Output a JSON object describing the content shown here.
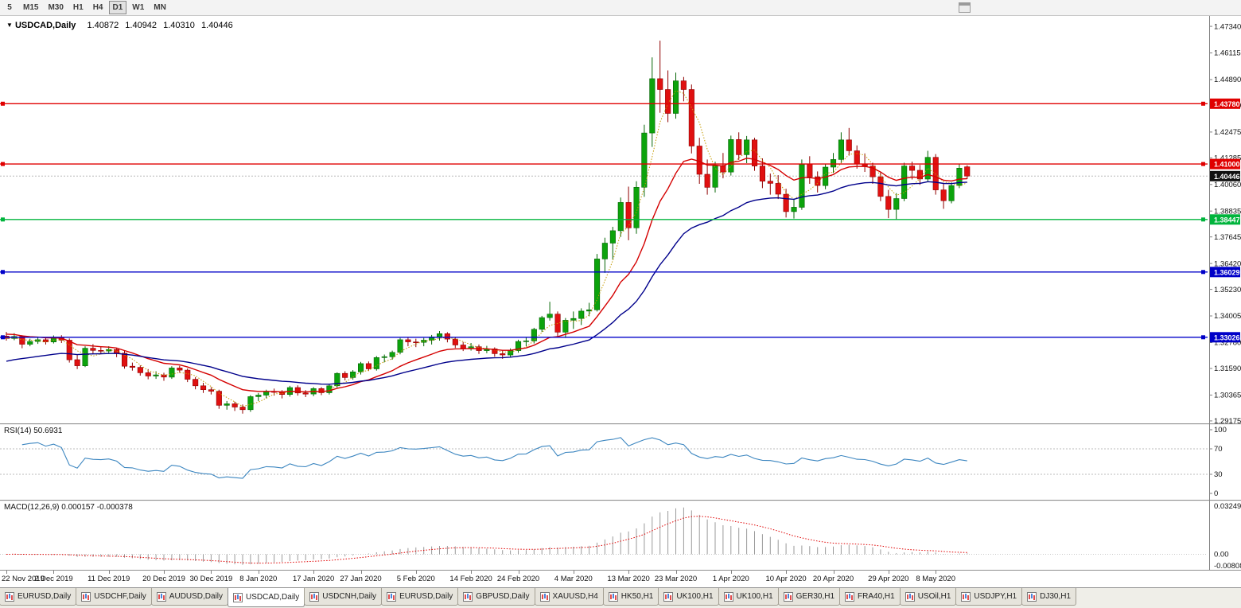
{
  "toolbar": {
    "timeframes": [
      "5",
      "M15",
      "M30",
      "H1",
      "H4",
      "D1",
      "W1",
      "MN"
    ],
    "selected": "D1"
  },
  "chart_header": {
    "dropdown_icon": "▼",
    "symbol": "USDCAD,Daily",
    "open": "1.40872",
    "high": "1.40942",
    "low": "1.40310",
    "close": "1.40446"
  },
  "price_axis": {
    "ticks": [
      "1.47340",
      "1.46115",
      "1.44890",
      "1.43700",
      "1.42475",
      "1.41285",
      "1.40060",
      "1.38835",
      "1.37645",
      "1.36420",
      "1.35230",
      "1.34005",
      "1.32780",
      "1.31590",
      "1.30365",
      "1.29175"
    ]
  },
  "levels": [
    {
      "value": 1.4378,
      "label": "1.43780",
      "color": "#E00000"
    },
    {
      "value": 1.41,
      "label": "1.41000",
      "color": "#E00000"
    },
    {
      "value": 1.38447,
      "label": "1.38447",
      "color": "#00B43C"
    },
    {
      "value": 1.36029,
      "label": "1.36029",
      "color": "#0000C8"
    },
    {
      "value": 1.33026,
      "label": "1.33026",
      "color": "#0000C8"
    }
  ],
  "current_price": {
    "value": 1.40446,
    "label": "1.40446"
  },
  "rsi_panel": {
    "label": "RSI(14) 50.6931",
    "period": 14,
    "upper": 70,
    "lower": 30,
    "color": "#3C86C0",
    "axis_ticks": [
      {
        "v": 100,
        "t": "100"
      },
      {
        "v": 70,
        "t": "70"
      },
      {
        "v": 30,
        "t": "30"
      },
      {
        "v": 0,
        "t": "0"
      }
    ]
  },
  "macd_panel": {
    "label": "MACD(12,26,9) 0.000157 -0.000378",
    "fast": 12,
    "slow": 26,
    "signal_period": 9,
    "axis_top": "0.032493",
    "axis_zero": "0.00",
    "axis_bottom": "-0.008086",
    "scale_max": 0.032493,
    "scale_min": -0.008086,
    "hist_color": "#9A9A9A",
    "signal_color": "#E00000"
  },
  "time_axis": {
    "labels": [
      {
        "bar": 0,
        "text": "22 Nov 2019"
      },
      {
        "bar": 6,
        "text": "2 Dec 2019"
      },
      {
        "bar": 13,
        "text": "11 Dec 2019"
      },
      {
        "bar": 20,
        "text": "20 Dec 2019"
      },
      {
        "bar": 26,
        "text": "30 Dec 2019"
      },
      {
        "bar": 32,
        "text": "8 Jan 2020"
      },
      {
        "bar": 39,
        "text": "17 Jan 2020"
      },
      {
        "bar": 45,
        "text": "27 Jan 2020"
      },
      {
        "bar": 52,
        "text": "5 Feb 2020"
      },
      {
        "bar": 59,
        "text": "14 Feb 2020"
      },
      {
        "bar": 65,
        "text": "24 Feb 2020"
      },
      {
        "bar": 72,
        "text": "4 Mar 2020"
      },
      {
        "bar": 79,
        "text": "13 Mar 2020"
      },
      {
        "bar": 85,
        "text": "23 Mar 2020"
      },
      {
        "bar": 92,
        "text": "1 Apr 2020"
      },
      {
        "bar": 99,
        "text": "10 Apr 2020"
      },
      {
        "bar": 105,
        "text": "20 Apr 2020"
      },
      {
        "bar": 112,
        "text": "29 Apr 2020"
      },
      {
        "bar": 118,
        "text": "8 May 2020"
      }
    ]
  },
  "tabs": [
    "EURUSD,Daily",
    "USDCHF,Daily",
    "AUDUSD,Daily",
    "USDCAD,Daily",
    "USDCNH,Daily",
    "EURUSD,Daily",
    "GBPUSD,Daily",
    "XAUUSD,H4",
    "HK50,H1",
    "UK100,H1",
    "UK100,H1",
    "GER30,H1",
    "FRA40,H1",
    "USOil,H1",
    "USDJPY,H1",
    "DJ30,H1"
  ],
  "selected_tab_index": 3,
  "colors": {
    "up": "#0CA30C",
    "up_edge": "#056605",
    "down": "#E01010",
    "down_edge": "#8F0000",
    "axis_line": "#808080",
    "current_line": "#B8B8B8",
    "rsi_guides": "#BBBBBB",
    "divider": "#8F8F8F"
  },
  "chart_data": {
    "type": "candlestick",
    "title": "USDCAD,Daily",
    "price_range_visible": [
      1.2906,
      1.4782
    ],
    "moving_averages": [
      {
        "name": "fast",
        "method": "sma",
        "period": 4,
        "color": "#C49A00",
        "style": "dotted",
        "seed": null
      },
      {
        "name": "medium",
        "method": "ema",
        "period": 13,
        "color": "#D40000",
        "style": "solid",
        "seed": 1.332
      },
      {
        "name": "slow",
        "method": "ema",
        "period": 30,
        "color": "#00008B",
        "style": "solid",
        "seed": 1.3185
      }
    ],
    "candles": [
      [
        1.3308,
        1.3327,
        1.3287,
        1.3297
      ],
      [
        1.3297,
        1.3321,
        1.3289,
        1.3306
      ],
      [
        1.3306,
        1.3312,
        1.3252,
        1.327
      ],
      [
        1.327,
        1.3296,
        1.3261,
        1.3283
      ],
      [
        1.3283,
        1.3304,
        1.3272,
        1.3291
      ],
      [
        1.3291,
        1.33,
        1.3269,
        1.3281
      ],
      [
        1.3281,
        1.3311,
        1.3274,
        1.33
      ],
      [
        1.33,
        1.3312,
        1.3276,
        1.3289
      ],
      [
        1.3289,
        1.3297,
        1.3186,
        1.3199
      ],
      [
        1.3199,
        1.3222,
        1.3156,
        1.3171
      ],
      [
        1.3171,
        1.3261,
        1.3165,
        1.3252
      ],
      [
        1.3252,
        1.3271,
        1.3227,
        1.3242
      ],
      [
        1.3242,
        1.3258,
        1.3224,
        1.3239
      ],
      [
        1.3239,
        1.3261,
        1.3229,
        1.3246
      ],
      [
        1.3246,
        1.3253,
        1.3211,
        1.3229
      ],
      [
        1.3229,
        1.324,
        1.3158,
        1.3169
      ],
      [
        1.3169,
        1.3186,
        1.3149,
        1.3164
      ],
      [
        1.3164,
        1.3173,
        1.3126,
        1.3139
      ],
      [
        1.3139,
        1.3156,
        1.3109,
        1.3124
      ],
      [
        1.3124,
        1.3146,
        1.3111,
        1.3129
      ],
      [
        1.3129,
        1.3139,
        1.3102,
        1.3119
      ],
      [
        1.3119,
        1.3169,
        1.3111,
        1.3161
      ],
      [
        1.3161,
        1.3171,
        1.3139,
        1.3151
      ],
      [
        1.3151,
        1.3159,
        1.3096,
        1.3109
      ],
      [
        1.3109,
        1.3119,
        1.3063,
        1.3079
      ],
      [
        1.3079,
        1.3093,
        1.3046,
        1.3061
      ],
      [
        1.3061,
        1.3073,
        1.3039,
        1.3054
      ],
      [
        1.3054,
        1.3061,
        1.2973,
        1.2989
      ],
      [
        1.2989,
        1.3009,
        1.2969,
        1.2996
      ],
      [
        1.2996,
        1.3006,
        1.2963,
        1.2981
      ],
      [
        1.2981,
        1.2993,
        1.2951,
        1.2969
      ],
      [
        1.2969,
        1.3036,
        1.2959,
        1.3029
      ],
      [
        1.3029,
        1.3046,
        1.3009,
        1.3036
      ],
      [
        1.3036,
        1.3061,
        1.3021,
        1.3053
      ],
      [
        1.3053,
        1.3066,
        1.3034,
        1.3049
      ],
      [
        1.3049,
        1.3059,
        1.3021,
        1.3039
      ],
      [
        1.3039,
        1.3079,
        1.3029,
        1.3071
      ],
      [
        1.3071,
        1.3081,
        1.3034,
        1.3046
      ],
      [
        1.3046,
        1.3059,
        1.3027,
        1.3041
      ],
      [
        1.3041,
        1.3073,
        1.3031,
        1.3066
      ],
      [
        1.3066,
        1.3073,
        1.3036,
        1.3047
      ],
      [
        1.3047,
        1.3086,
        1.3039,
        1.3079
      ],
      [
        1.3079,
        1.3141,
        1.3071,
        1.3136
      ],
      [
        1.3136,
        1.3146,
        1.3104,
        1.3117
      ],
      [
        1.3117,
        1.3151,
        1.3107,
        1.3143
      ],
      [
        1.3143,
        1.3189,
        1.3131,
        1.3181
      ],
      [
        1.3181,
        1.3191,
        1.3147,
        1.3157
      ],
      [
        1.3157,
        1.3216,
        1.3149,
        1.3209
      ],
      [
        1.3209,
        1.3223,
        1.3187,
        1.3213
      ],
      [
        1.3213,
        1.3241,
        1.3199,
        1.3233
      ],
      [
        1.3233,
        1.3299,
        1.3224,
        1.3291
      ],
      [
        1.3291,
        1.3301,
        1.3261,
        1.3281
      ],
      [
        1.3281,
        1.3296,
        1.3257,
        1.3279
      ],
      [
        1.3279,
        1.3299,
        1.3261,
        1.3289
      ],
      [
        1.3289,
        1.3313,
        1.3269,
        1.3304
      ],
      [
        1.3304,
        1.3331,
        1.3287,
        1.3319
      ],
      [
        1.3319,
        1.3326,
        1.3279,
        1.3294
      ],
      [
        1.3294,
        1.3303,
        1.3253,
        1.3267
      ],
      [
        1.3267,
        1.3281,
        1.3239,
        1.3251
      ],
      [
        1.3251,
        1.3276,
        1.3241,
        1.3259
      ],
      [
        1.3259,
        1.3269,
        1.3226,
        1.3241
      ],
      [
        1.3241,
        1.3263,
        1.3229,
        1.3249
      ],
      [
        1.3249,
        1.3256,
        1.3213,
        1.3227
      ],
      [
        1.3227,
        1.3243,
        1.3203,
        1.3221
      ],
      [
        1.3221,
        1.3251,
        1.3211,
        1.3241
      ],
      [
        1.3241,
        1.3291,
        1.3231,
        1.3283
      ],
      [
        1.3283,
        1.3301,
        1.3261,
        1.3286
      ],
      [
        1.3286,
        1.3346,
        1.3274,
        1.3339
      ],
      [
        1.3339,
        1.3401,
        1.3327,
        1.3393
      ],
      [
        1.3393,
        1.3466,
        1.3379,
        1.3409
      ],
      [
        1.3409,
        1.3421,
        1.3303,
        1.3326
      ],
      [
        1.3326,
        1.3391,
        1.3299,
        1.3381
      ],
      [
        1.3381,
        1.3421,
        1.3341,
        1.3389
      ],
      [
        1.3389,
        1.3436,
        1.3359,
        1.3423
      ],
      [
        1.3423,
        1.3461,
        1.3399,
        1.3429
      ],
      [
        1.3429,
        1.3686,
        1.3421,
        1.3663
      ],
      [
        1.3663,
        1.3761,
        1.3599,
        1.3736
      ],
      [
        1.3736,
        1.3811,
        1.3659,
        1.3793
      ],
      [
        1.3793,
        1.3946,
        1.3764,
        1.3923
      ],
      [
        1.3923,
        1.3996,
        1.3749,
        1.3806
      ],
      [
        1.3806,
        1.4021,
        1.3779,
        1.3993
      ],
      [
        1.3993,
        1.4281,
        1.3949,
        1.4243
      ],
      [
        1.4243,
        1.4591,
        1.4179,
        1.4493
      ],
      [
        1.4493,
        1.4668,
        1.4336,
        1.4443
      ],
      [
        1.4443,
        1.4531,
        1.4293,
        1.4333
      ],
      [
        1.4333,
        1.4521,
        1.4309,
        1.4483
      ],
      [
        1.4483,
        1.4501,
        1.4389,
        1.4443
      ],
      [
        1.4443,
        1.4466,
        1.4149,
        1.4183
      ],
      [
        1.4183,
        1.4221,
        1.4009,
        1.4053
      ],
      [
        1.4053,
        1.4121,
        1.3959,
        1.3993
      ],
      [
        1.3993,
        1.4111,
        1.3969,
        1.4093
      ],
      [
        1.4093,
        1.4151,
        1.4034,
        1.4063
      ],
      [
        1.4063,
        1.4231,
        1.4047,
        1.4213
      ],
      [
        1.4213,
        1.4246,
        1.4119,
        1.4143
      ],
      [
        1.4143,
        1.4229,
        1.4104,
        1.4211
      ],
      [
        1.4211,
        1.4221,
        1.4069,
        1.4091
      ],
      [
        1.4091,
        1.4126,
        1.3989,
        1.4021
      ],
      [
        1.4021,
        1.4056,
        1.3959,
        1.4011
      ],
      [
        1.4011,
        1.4049,
        1.3939,
        1.3961
      ],
      [
        1.3961,
        1.3986,
        1.3854,
        1.3881
      ],
      [
        1.3881,
        1.3936,
        1.3849,
        1.3901
      ],
      [
        1.3901,
        1.4121,
        1.3889,
        1.4101
      ],
      [
        1.4101,
        1.4136,
        1.4009,
        1.4041
      ],
      [
        1.4041,
        1.4066,
        1.3969,
        1.4001
      ],
      [
        1.4001,
        1.4101,
        1.3984,
        1.4086
      ],
      [
        1.4086,
        1.4151,
        1.4059,
        1.4121
      ],
      [
        1.4121,
        1.4246,
        1.4104,
        1.4211
      ],
      [
        1.4211,
        1.4266,
        1.4139,
        1.4161
      ],
      [
        1.4161,
        1.4186,
        1.4079,
        1.4101
      ],
      [
        1.4101,
        1.4149,
        1.4064,
        1.4091
      ],
      [
        1.4091,
        1.4106,
        1.4009,
        1.4041
      ],
      [
        1.4041,
        1.4061,
        1.3929,
        1.3951
      ],
      [
        1.3951,
        1.3981,
        1.3851,
        1.3891
      ],
      [
        1.3891,
        1.3966,
        1.3846,
        1.3941
      ],
      [
        1.3941,
        1.4106,
        1.3929,
        1.4091
      ],
      [
        1.4091,
        1.4111,
        1.4029,
        1.4071
      ],
      [
        1.4071,
        1.4096,
        1.4004,
        1.4031
      ],
      [
        1.4031,
        1.4161,
        1.4019,
        1.4131
      ],
      [
        1.4131,
        1.4146,
        1.3959,
        1.3981
      ],
      [
        1.3981,
        1.4011,
        1.3894,
        1.3931
      ],
      [
        1.3931,
        1.4016,
        1.3919,
        1.4001
      ],
      [
        1.4001,
        1.4099,
        1.3989,
        1.4081
      ],
      [
        1.40872,
        1.40942,
        1.4031,
        1.40446
      ]
    ]
  }
}
